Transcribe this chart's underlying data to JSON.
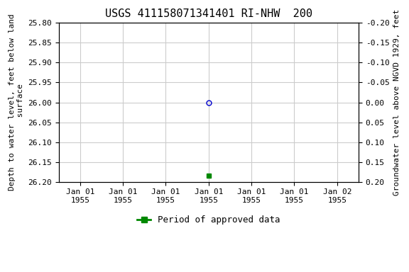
{
  "title": "USGS 411158071341401 RI-NHW  200",
  "ylabel_left": "Depth to water level, feet below land\n surface",
  "ylabel_right": "Groundwater level above NGVD 1929, feet",
  "ylim_left": [
    25.8,
    26.2
  ],
  "ylim_right": [
    0.2,
    -0.2
  ],
  "y_ticks_left": [
    25.8,
    25.85,
    25.9,
    25.95,
    26.0,
    26.05,
    26.1,
    26.15,
    26.2
  ],
  "y_ticks_right": [
    0.2,
    0.15,
    0.1,
    0.05,
    0.0,
    -0.05,
    -0.1,
    -0.15,
    -0.2
  ],
  "x_ticks": [
    0,
    1,
    2,
    3,
    4,
    5,
    6
  ],
  "x_tick_labels": [
    "Jan 01\n1955",
    "Jan 01\n1955",
    "Jan 01\n1955",
    "Jan 01\n1955",
    "Jan 01\n1955",
    "Jan 01\n1955",
    "Jan 02\n1955"
  ],
  "xlim": [
    -0.5,
    6.5
  ],
  "data_point_x": 3,
  "data_point_y": 26.0,
  "data_point_color": "#0000cc",
  "data_point_marker": "o",
  "data_point_markersize": 5,
  "approved_x": 3,
  "approved_y": 26.185,
  "approved_color": "#008800",
  "approved_marker": "s",
  "approved_markersize": 4,
  "legend_label": "Period of approved data",
  "grid_color": "#cccccc",
  "background_color": "#ffffff",
  "title_fontsize": 11,
  "tick_fontsize": 8,
  "ylabel_fontsize": 8
}
